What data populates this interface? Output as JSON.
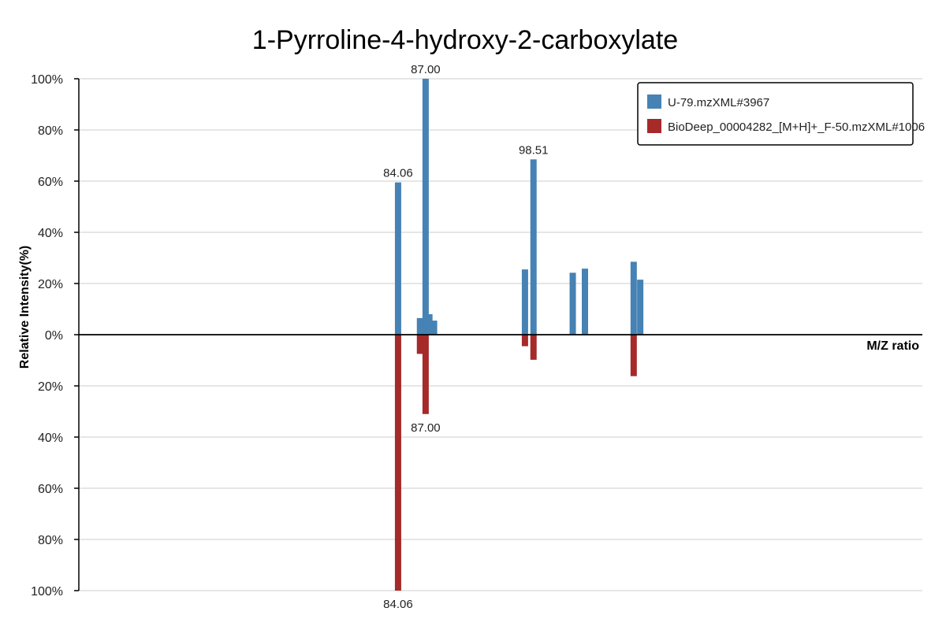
{
  "chart_data": {
    "type": "bar",
    "title": "1-Pyrroline-4-hydroxy-2-carboxylate",
    "xlabel": "M/Z ratio",
    "ylabel": "Relative Intensity(%)",
    "y_ticks_top": [
      "100%",
      "80%",
      "60%",
      "40%",
      "20%",
      "0%"
    ],
    "y_ticks_bottom": [
      "20%",
      "40%",
      "60%",
      "80%",
      "100%"
    ],
    "ylim": [
      -100,
      100
    ],
    "xlim": [
      50,
      140
    ],
    "grid": true,
    "legend_position": "top-right",
    "series": [
      {
        "name": "U-79.mzXML#3967",
        "color": "#4682b4",
        "direction": "up",
        "peaks": [
          {
            "mz": 84.06,
            "intensity": 59.5,
            "label": "84.06"
          },
          {
            "mz": 86.4,
            "intensity": 6.5
          },
          {
            "mz": 87.0,
            "intensity": 100,
            "label": "87.00"
          },
          {
            "mz": 87.4,
            "intensity": 8
          },
          {
            "mz": 87.9,
            "intensity": 5.5
          },
          {
            "mz": 97.6,
            "intensity": 25.5
          },
          {
            "mz": 98.51,
            "intensity": 68.5,
            "label": "98.51"
          },
          {
            "mz": 102.7,
            "intensity": 24.2
          },
          {
            "mz": 104.0,
            "intensity": 25.8
          },
          {
            "mz": 109.2,
            "intensity": 28.5
          },
          {
            "mz": 109.9,
            "intensity": 21.5
          }
        ]
      },
      {
        "name": "BioDeep_00004282_[M+H]+_F-50.mzXML#1006",
        "color": "#a52a2a",
        "direction": "down",
        "peaks": [
          {
            "mz": 84.06,
            "intensity": 100,
            "label": "84.06"
          },
          {
            "mz": 86.4,
            "intensity": 7.5
          },
          {
            "mz": 87.0,
            "intensity": 31,
            "label": "87.00"
          },
          {
            "mz": 97.6,
            "intensity": 4.5
          },
          {
            "mz": 98.51,
            "intensity": 9.8
          },
          {
            "mz": 109.2,
            "intensity": 16.2
          }
        ]
      }
    ]
  }
}
